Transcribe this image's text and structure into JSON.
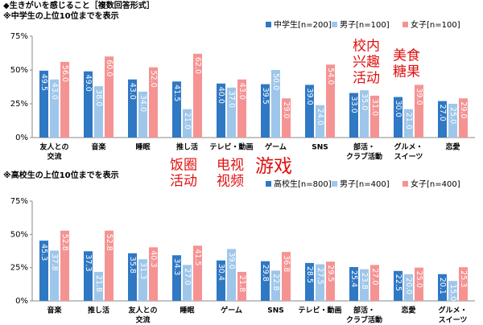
{
  "title": "◆生きがいを感じること［複数回答形式］",
  "chart_data": [
    {
      "type": "bar",
      "subtitle": "※中学生の上位10位までを表示",
      "categories": [
        [
          "友人との",
          "交流"
        ],
        [
          "音楽"
        ],
        [
          "睡眠"
        ],
        [
          "推し活"
        ],
        [
          "テレビ・動画"
        ],
        [
          "ゲーム"
        ],
        [
          "SNS"
        ],
        [
          "部活・",
          "クラブ活動"
        ],
        [
          "グルメ・",
          "スイーツ"
        ],
        [
          "恋愛"
        ]
      ],
      "series": [
        {
          "name": "中学生[n=200]",
          "color": "#2f78c4",
          "values": [
            49.5,
            49,
            43,
            41.5,
            40,
            39.5,
            39,
            33,
            30,
            27
          ],
          "value_labels": [
            "49.5",
            "49.0",
            "43.0",
            "41.5",
            "40.0",
            "39.5",
            "39.0",
            "33.0",
            "30.0",
            "27.0"
          ]
        },
        {
          "name": "男子[n=100]",
          "color": "#9ec6ea",
          "values": [
            43,
            38,
            34,
            21,
            37,
            50,
            24,
            35,
            21,
            25
          ],
          "value_labels": [
            "43.0",
            "38.0",
            "34.0",
            "21.0",
            "37.0",
            "50.0",
            "24.0",
            "35.0",
            "21.0",
            "25.0"
          ]
        },
        {
          "name": "女子[n=100]",
          "color": "#f59393",
          "values": [
            56,
            60,
            52,
            62,
            43,
            29,
            54,
            31,
            39,
            29
          ],
          "value_labels": [
            "56.0",
            "60.0",
            "52.0",
            "62.0",
            "43.0",
            "29.0",
            "54.0",
            "31.0",
            "39.0",
            "29.0"
          ]
        }
      ],
      "ylim": [
        0,
        75
      ],
      "yticks": [
        {
          "value": 0,
          "label": "0%"
        },
        {
          "value": 25,
          "label": "25%"
        },
        {
          "value": 50,
          "label": "50%"
        },
        {
          "value": 75,
          "label": "75%"
        }
      ],
      "grid": false
    },
    {
      "type": "bar",
      "subtitle": "※高校生の上位10位までを表示",
      "categories": [
        [
          "音楽"
        ],
        [
          "推し活"
        ],
        [
          "友人との",
          "交流"
        ],
        [
          "睡眠"
        ],
        [
          "ゲーム"
        ],
        [
          "SNS"
        ],
        [
          "テレビ・動画"
        ],
        [
          "部活・",
          "クラブ活動"
        ],
        [
          "恋愛"
        ],
        [
          "グルメ・",
          "スイーツ"
        ]
      ],
      "series": [
        {
          "name": "高校生[n=800]",
          "color": "#2f78c4",
          "values": [
            45.3,
            37.3,
            35.8,
            34.3,
            30.4,
            29.8,
            28.5,
            25.4,
            22.5,
            20.1
          ]
        },
        {
          "name": "男子[n=400]",
          "color": "#9ec6ea",
          "values": [
            37.8,
            21.8,
            31.3,
            27,
            39,
            22.8,
            27.5,
            23.8,
            20,
            15
          ],
          "value_labels": [
            "37.8",
            "21.8",
            "31.3",
            "27.0",
            "39.0",
            "22.8",
            "27.5",
            "23.8",
            "20.0",
            "15.0"
          ]
        },
        {
          "name": "女子[n=400]",
          "color": "#f59393",
          "values": [
            52.8,
            52.8,
            40.3,
            41.5,
            21.8,
            36.8,
            29.5,
            27,
            25,
            25.3
          ],
          "value_labels": [
            "52.8",
            "52.8",
            "40.3",
            "41.5",
            "21.8",
            "36.8",
            "29.5",
            "27.0",
            "25.0",
            "25.3"
          ]
        }
      ],
      "ylim": [
        0,
        75
      ],
      "yticks": [
        {
          "value": 0,
          "label": "0%"
        },
        {
          "value": 25,
          "label": "25%"
        },
        {
          "value": 50,
          "label": "50%"
        },
        {
          "value": 75,
          "label": "75%"
        }
      ],
      "grid": false
    }
  ],
  "annotations": [
    {
      "lines": [
        "校内",
        "兴趣",
        "活动"
      ]
    },
    {
      "lines": [
        "美食",
        "糖果"
      ]
    },
    {
      "lines": [
        "饭圈",
        "活动"
      ]
    },
    {
      "lines": [
        "电视",
        "视频"
      ]
    },
    {
      "lines": [
        "游戏"
      ]
    }
  ]
}
